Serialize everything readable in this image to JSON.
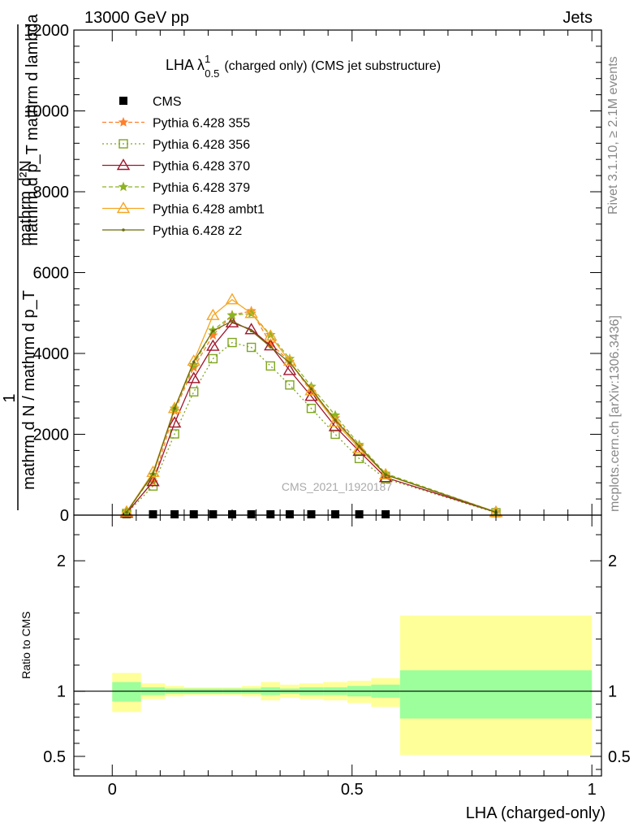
{
  "header": {
    "left": "13000 GeV pp",
    "right": "Jets"
  },
  "side_labels": {
    "rivet": "Rivet 3.1.10, ≥ 2.1M events",
    "mcplots": "mcplots.cern.ch [arXiv:1306.3436]"
  },
  "watermark": "CMS_2021_I1920187",
  "colors": {
    "cms": "#000000",
    "p355": "#ff7f2a",
    "p356": "#7fa61f",
    "p370": "#a0162c",
    "p379": "#8cb422",
    "ambt1": "#f5a623",
    "z2": "#6b6b0a",
    "band_stat": "#9cff9c",
    "band_total": "#ffff99"
  },
  "chart_data": [
    {
      "type": "line",
      "title": "LHA λ¹₀.₅ (charged only) (CMS jet substructure)",
      "title_main": "LHA λ",
      "title_sup": "1",
      "title_sub": "0.5",
      "title_rest": "(charged only) (CMS jet substructure)",
      "xlabel": "LHA (charged-only)",
      "ylabel_overlap_1": "mathrm d²N",
      "ylabel_overlap_2": "mathrm d p_T mathrm d lambda",
      "ylabel_lower_1": "1",
      "ylabel_lower_2": "mathrm d N / mathrm d p_T",
      "xlim": [
        -0.08,
        1.02
      ],
      "ylim": [
        0,
        12000
      ],
      "yticks": [
        {
          "v": 0,
          "label": "0"
        },
        {
          "v": 2000,
          "label": "2000"
        },
        {
          "v": 4000,
          "label": "4000"
        },
        {
          "v": 6000,
          "label": "6000"
        },
        {
          "v": 8000,
          "label": "8000"
        },
        {
          "v": 10000,
          "label": "10000"
        },
        {
          "v": 12000,
          "label": "12000"
        }
      ],
      "legend_position": "top-left",
      "x": [
        0.03,
        0.085,
        0.13,
        0.17,
        0.21,
        0.25,
        0.29,
        0.33,
        0.37,
        0.415,
        0.465,
        0.515,
        0.57,
        0.8
      ],
      "series": [
        {
          "name": "CMS",
          "key": "cms",
          "marker": "square",
          "values": [
            10,
            10,
            10,
            10,
            10,
            10,
            10,
            10,
            10,
            10,
            10,
            10,
            10,
            null
          ]
        },
        {
          "name": "Pythia 6.428 355",
          "key": "p355",
          "marker": "star",
          "dash": "5,3",
          "values": [
            60,
            820,
            2580,
            3650,
            4450,
            4950,
            5050,
            4250,
            3800,
            3050,
            2400,
            1700,
            1000,
            80
          ]
        },
        {
          "name": "Pythia 6.428 356",
          "key": "p356",
          "marker": "square-open",
          "dash": "2,3",
          "values": [
            40,
            720,
            2010,
            3050,
            3870,
            4270,
            4150,
            3690,
            3220,
            2640,
            2000,
            1400,
            900,
            60
          ]
        },
        {
          "name": "Pythia 6.428 370",
          "key": "p370",
          "marker": "triangle-open",
          "dash": "",
          "values": [
            50,
            830,
            2280,
            3380,
            4180,
            4760,
            4590,
            4190,
            3580,
            2940,
            2190,
            1580,
            930,
            70
          ]
        },
        {
          "name": "Pythia 6.428 379",
          "key": "p379",
          "marker": "star",
          "dash": "5,3",
          "values": [
            70,
            1000,
            2640,
            3720,
            4570,
            4940,
            4990,
            4460,
            3870,
            3180,
            2470,
            1740,
            1030,
            80
          ]
        },
        {
          "name": "Pythia 6.428 ambt1",
          "key": "ambt1",
          "marker": "triangle-open",
          "dash": "",
          "values": [
            80,
            1060,
            2640,
            3810,
            4940,
            5330,
            4990,
            4430,
            3810,
            3080,
            2300,
            1650,
            1000,
            70
          ]
        },
        {
          "name": "Pythia 6.428 z2",
          "key": "z2",
          "marker": "dot",
          "dash": "",
          "values": [
            70,
            1020,
            2640,
            3790,
            4560,
            4800,
            4560,
            4160,
            3770,
            3120,
            2350,
            1700,
            1000,
            70
          ]
        }
      ]
    },
    {
      "type": "area",
      "ylabel": "Ratio to CMS",
      "xlabel": "LHA (charged-only)",
      "xlim": [
        -0.08,
        1.02
      ],
      "ylim": [
        0.35,
        2.35
      ],
      "xticks": [
        {
          "v": 0,
          "label": "0"
        },
        {
          "v": 0.5,
          "label": "0.5"
        },
        {
          "v": 1,
          "label": "1"
        }
      ],
      "yticks": [
        {
          "v": 0.5,
          "label": "0.5"
        },
        {
          "v": 1,
          "label": "1"
        },
        {
          "v": 2,
          "label": "2"
        }
      ],
      "reference_line": 1,
      "bins": [
        {
          "x0": 0.0,
          "x1": 0.06,
          "stat": [
            0.92,
            1.07
          ],
          "total": [
            0.84,
            1.14
          ]
        },
        {
          "x0": 0.06,
          "x1": 0.11,
          "stat": [
            0.97,
            1.03
          ],
          "total": [
            0.94,
            1.06
          ]
        },
        {
          "x0": 0.11,
          "x1": 0.15,
          "stat": [
            0.98,
            1.02
          ],
          "total": [
            0.96,
            1.04
          ]
        },
        {
          "x0": 0.15,
          "x1": 0.19,
          "stat": [
            0.98,
            1.02
          ],
          "total": [
            0.97,
            1.03
          ]
        },
        {
          "x0": 0.19,
          "x1": 0.23,
          "stat": [
            0.98,
            1.02
          ],
          "total": [
            0.97,
            1.03
          ]
        },
        {
          "x0": 0.23,
          "x1": 0.27,
          "stat": [
            0.98,
            1.02
          ],
          "total": [
            0.97,
            1.03
          ]
        },
        {
          "x0": 0.27,
          "x1": 0.31,
          "stat": [
            0.98,
            1.02
          ],
          "total": [
            0.96,
            1.04
          ]
        },
        {
          "x0": 0.31,
          "x1": 0.35,
          "stat": [
            0.97,
            1.03
          ],
          "total": [
            0.93,
            1.07
          ]
        },
        {
          "x0": 0.35,
          "x1": 0.39,
          "stat": [
            0.98,
            1.02
          ],
          "total": [
            0.95,
            1.05
          ]
        },
        {
          "x0": 0.39,
          "x1": 0.44,
          "stat": [
            0.97,
            1.03
          ],
          "total": [
            0.94,
            1.06
          ]
        },
        {
          "x0": 0.44,
          "x1": 0.49,
          "stat": [
            0.97,
            1.03
          ],
          "total": [
            0.93,
            1.07
          ]
        },
        {
          "x0": 0.49,
          "x1": 0.54,
          "stat": [
            0.96,
            1.04
          ],
          "total": [
            0.91,
            1.08
          ]
        },
        {
          "x0": 0.54,
          "x1": 0.6,
          "stat": [
            0.95,
            1.05
          ],
          "total": [
            0.88,
            1.1
          ]
        },
        {
          "x0": 0.6,
          "x1": 1.0,
          "stat": [
            0.79,
            1.16
          ],
          "total": [
            0.51,
            1.58
          ]
        }
      ]
    }
  ]
}
